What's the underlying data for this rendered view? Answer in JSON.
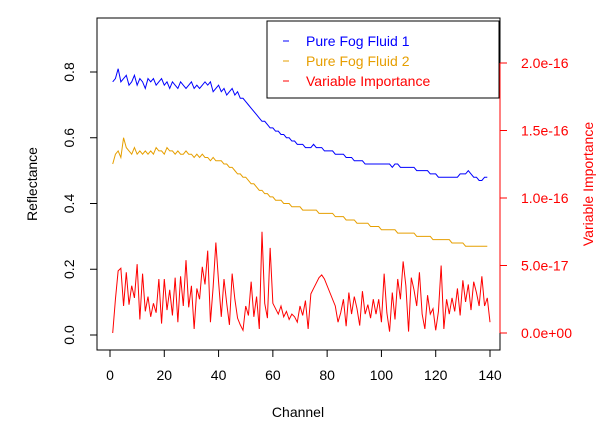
{
  "chart_data": {
    "type": "line",
    "xlabel": "Channel",
    "ylabel_left": "Reflectance",
    "ylabel_right": "Variable Importance",
    "xlim": [
      0,
      140
    ],
    "ylim_left": [
      0,
      0.9
    ],
    "ylim_right": [
      0,
      2.2e-16
    ],
    "x_ticks": [
      0,
      20,
      40,
      60,
      80,
      100,
      120,
      140
    ],
    "y_ticks_left": [
      0.0,
      0.2,
      0.4,
      0.6,
      0.8
    ],
    "y_ticks_left_labels": [
      "0.0",
      "0.2",
      "0.4",
      "0.6",
      "0.8"
    ],
    "y_ticks_right": [
      0,
      5e-17,
      1e-16,
      1.5e-16,
      2e-16
    ],
    "y_ticks_right_labels": [
      "0.0e+00",
      "5.0e-17",
      "1.0e-16",
      "1.5e-16",
      "2.0e-16"
    ],
    "grid": false,
    "legend_position": "top-right",
    "series": [
      {
        "name": "Pure Fog Fluid 1",
        "color": "#0000ff",
        "axis": "left",
        "values": [
          0.77,
          0.78,
          0.81,
          0.77,
          0.78,
          0.79,
          0.76,
          0.77,
          0.79,
          0.76,
          0.78,
          0.77,
          0.75,
          0.78,
          0.77,
          0.78,
          0.76,
          0.77,
          0.78,
          0.76,
          0.77,
          0.75,
          0.77,
          0.76,
          0.75,
          0.77,
          0.76,
          0.75,
          0.76,
          0.77,
          0.75,
          0.76,
          0.75,
          0.76,
          0.77,
          0.76,
          0.77,
          0.74,
          0.75,
          0.76,
          0.74,
          0.75,
          0.73,
          0.74,
          0.75,
          0.73,
          0.74,
          0.72,
          0.72,
          0.71,
          0.7,
          0.69,
          0.68,
          0.67,
          0.66,
          0.65,
          0.65,
          0.64,
          0.63,
          0.63,
          0.62,
          0.62,
          0.61,
          0.61,
          0.6,
          0.6,
          0.59,
          0.59,
          0.58,
          0.58,
          0.58,
          0.57,
          0.57,
          0.57,
          0.58,
          0.57,
          0.57,
          0.57,
          0.56,
          0.56,
          0.56,
          0.56,
          0.55,
          0.55,
          0.55,
          0.55,
          0.54,
          0.54,
          0.54,
          0.53,
          0.53,
          0.53,
          0.53,
          0.52,
          0.52,
          0.52,
          0.52,
          0.52,
          0.52,
          0.52,
          0.52,
          0.52,
          0.52,
          0.51,
          0.52,
          0.52,
          0.51,
          0.51,
          0.51,
          0.51,
          0.51,
          0.51,
          0.5,
          0.5,
          0.5,
          0.5,
          0.5,
          0.49,
          0.49,
          0.49,
          0.48,
          0.48,
          0.48,
          0.48,
          0.48,
          0.48,
          0.48,
          0.48,
          0.49,
          0.49,
          0.49,
          0.5,
          0.49,
          0.48,
          0.48,
          0.47,
          0.47,
          0.48,
          0.48
        ]
      },
      {
        "name": "Pure Fog Fluid 2",
        "color": "#e69f00",
        "axis": "left",
        "values": [
          0.52,
          0.55,
          0.56,
          0.54,
          0.6,
          0.57,
          0.56,
          0.55,
          0.57,
          0.55,
          0.56,
          0.55,
          0.56,
          0.55,
          0.56,
          0.55,
          0.57,
          0.56,
          0.56,
          0.55,
          0.57,
          0.56,
          0.56,
          0.55,
          0.56,
          0.55,
          0.55,
          0.56,
          0.55,
          0.55,
          0.54,
          0.55,
          0.54,
          0.55,
          0.54,
          0.54,
          0.53,
          0.54,
          0.53,
          0.53,
          0.53,
          0.52,
          0.52,
          0.51,
          0.51,
          0.5,
          0.49,
          0.49,
          0.48,
          0.48,
          0.47,
          0.46,
          0.46,
          0.45,
          0.44,
          0.44,
          0.43,
          0.43,
          0.42,
          0.42,
          0.41,
          0.41,
          0.41,
          0.4,
          0.4,
          0.4,
          0.39,
          0.39,
          0.39,
          0.39,
          0.38,
          0.38,
          0.38,
          0.38,
          0.38,
          0.38,
          0.37,
          0.37,
          0.37,
          0.37,
          0.37,
          0.37,
          0.36,
          0.36,
          0.36,
          0.36,
          0.35,
          0.35,
          0.35,
          0.35,
          0.34,
          0.34,
          0.34,
          0.34,
          0.34,
          0.33,
          0.33,
          0.33,
          0.33,
          0.32,
          0.32,
          0.32,
          0.32,
          0.32,
          0.32,
          0.31,
          0.31,
          0.31,
          0.31,
          0.31,
          0.31,
          0.31,
          0.3,
          0.3,
          0.3,
          0.3,
          0.3,
          0.3,
          0.29,
          0.29,
          0.29,
          0.29,
          0.29,
          0.29,
          0.29,
          0.28,
          0.28,
          0.28,
          0.28,
          0.28,
          0.27,
          0.27,
          0.27,
          0.27,
          0.27,
          0.27,
          0.27,
          0.27,
          0.27
        ]
      },
      {
        "name": "Variable Importance",
        "color": "#ff0000",
        "axis": "right",
        "values": [
          0,
          2.5e-17,
          4.6e-17,
          4.8e-17,
          2e-17,
          4.5e-17,
          2.1e-17,
          3.5e-17,
          2.6e-17,
          5.1e-17,
          1e-17,
          4.4e-17,
          1.6e-17,
          2.7e-17,
          1.2e-17,
          2.2e-17,
          1.5e-17,
          4e-17,
          7e-18,
          4e-17,
          1.7e-17,
          3.2e-17,
          1.3e-17,
          4.1e-17,
          8e-18,
          4.2e-17,
          2e-17,
          5.4e-17,
          1.9e-17,
          3.5e-17,
          3e-18,
          3.3e-17,
          2.5e-17,
          4.9e-17,
          3.6e-17,
          6.1e-17,
          8e-18,
          3.4e-17,
          6.7e-17,
          3.8e-17,
          1.2e-17,
          4e-17,
          2.2e-17,
          6e-18,
          4.4e-17,
          2.5e-17,
          1.1e-17,
          6e-18,
          2e-18,
          2e-17,
          1.3e-17,
          3.8e-17,
          1.2e-17,
          2.7e-17,
          3e-18,
          7.5e-17,
          2.2e-17,
          1.1e-17,
          6.3e-17,
          2.2e-17,
          1.8e-17,
          1.4e-17,
          2e-17,
          1.2e-17,
          1.6e-17,
          1e-17,
          1.4e-17,
          1.2e-17,
          8e-18,
          2e-17,
          1.3e-17,
          2.4e-17,
          3e-18,
          2.9e-17,
          3.3e-17,
          3.7e-17,
          4.1e-17,
          4.3e-17,
          4e-17,
          3.5e-17,
          3e-17,
          2.5e-17,
          2e-17,
          8e-18,
          1.5e-17,
          2.5e-17,
          5e-18,
          3e-17,
          1.4e-17,
          2.7e-17,
          1.8e-17,
          5.5e-18,
          3.1e-17,
          1.4e-17,
          2.1e-17,
          1.1e-17,
          2.5e-17,
          1.4e-17,
          2.5e-17,
          8e-18,
          4.4e-17,
          1.5e-17,
          1e-18,
          3e-17,
          1e-17,
          4e-17,
          2.5e-17,
          5.3e-17,
          3.5e-17,
          1e-18,
          4.1e-17,
          3.2e-17,
          2e-17,
          4.5e-17,
          1.4e-17,
          3e-18,
          2.8e-17,
          1.4e-17,
          1.8e-17,
          2e-18,
          1.6e-17,
          5e-17,
          3e-18,
          2.5e-17,
          1.4e-17,
          2.6e-17,
          1.6e-17,
          3.3e-17,
          1.3e-17,
          3.9e-17,
          2.3e-17,
          3.6e-17,
          1.7e-17,
          3.8e-17,
          3e-17,
          2e-17,
          4.2e-17,
          2e-17,
          2.6e-17,
          8e-18
        ]
      }
    ]
  }
}
